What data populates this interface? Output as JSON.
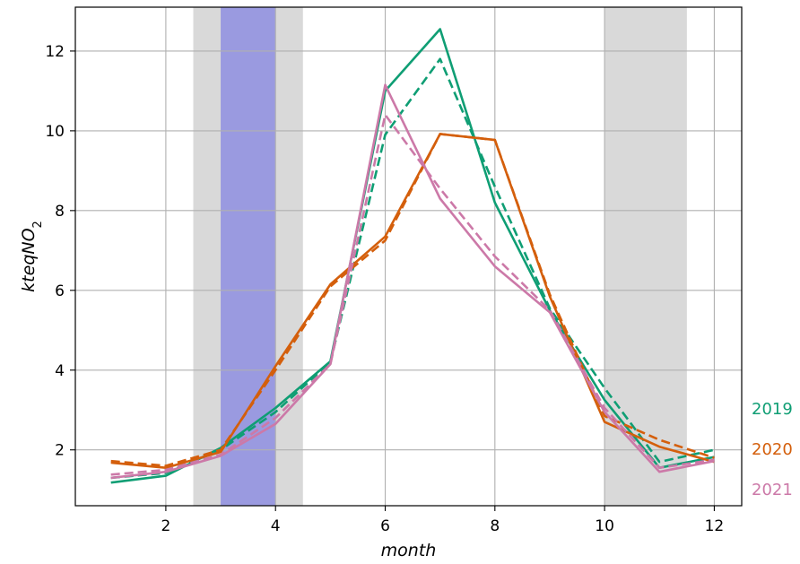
{
  "chart_data": {
    "type": "line",
    "xlabel": "month",
    "ylabel": "kteqNO",
    "ylabel_subscript": "2",
    "xlim": [
      0.35,
      12.5
    ],
    "ylim": [
      0.6,
      13.1
    ],
    "xticks": [
      2,
      4,
      6,
      8,
      10,
      12
    ],
    "yticks": [
      2,
      4,
      6,
      8,
      10,
      12
    ],
    "grid": true,
    "shaded_bands": [
      {
        "x0": 2.5,
        "x1": 4.5,
        "color": "#d9d9d9"
      },
      {
        "x0": 10.0,
        "x1": 11.5,
        "color": "#d9d9d9"
      },
      {
        "x0": 3.0,
        "x1": 4.0,
        "color": "#9a9ae0"
      }
    ],
    "x": [
      1,
      2,
      3,
      4,
      5,
      6,
      7,
      8,
      9,
      10,
      11,
      12
    ],
    "series": [
      {
        "name": "2019",
        "color": "#0f9e74",
        "style": "solid",
        "values": [
          1.18,
          1.35,
          2.05,
          3.05,
          4.22,
          11.0,
          12.55,
          8.2,
          5.5,
          3.25,
          1.55,
          1.82
        ]
      },
      {
        "name": "2019",
        "color": "#0f9e74",
        "style": "dashed",
        "values": [
          1.3,
          1.42,
          2.0,
          2.95,
          4.2,
          9.9,
          11.8,
          8.6,
          5.55,
          3.55,
          1.7,
          2.0
        ]
      },
      {
        "name": "2020",
        "color": "#d45f0c",
        "style": "solid",
        "values": [
          1.68,
          1.55,
          1.95,
          4.1,
          6.15,
          7.35,
          9.92,
          9.77,
          5.85,
          2.7,
          2.08,
          1.7
        ]
      },
      {
        "name": "2020",
        "color": "#d45f0c",
        "style": "dashed",
        "values": [
          1.72,
          1.6,
          2.0,
          4.0,
          6.1,
          7.25,
          9.92,
          9.77,
          5.9,
          2.85,
          2.25,
          1.8
        ]
      },
      {
        "name": "2021",
        "color": "#cc79a8",
        "style": "solid",
        "values": [
          1.3,
          1.45,
          1.85,
          2.65,
          4.15,
          11.15,
          8.3,
          6.6,
          5.45,
          2.95,
          1.45,
          1.72
        ]
      },
      {
        "name": "2021",
        "color": "#cc79a8",
        "style": "dashed",
        "values": [
          1.38,
          1.5,
          1.88,
          2.8,
          4.15,
          10.4,
          8.55,
          6.85,
          5.5,
          3.05,
          1.55,
          1.75
        ]
      }
    ],
    "legend": [
      {
        "label": "2019",
        "color": "#0f9e74"
      },
      {
        "label": "2020",
        "color": "#d45f0c"
      },
      {
        "label": "2021",
        "color": "#cc79a8"
      }
    ],
    "legend_position": "right"
  }
}
